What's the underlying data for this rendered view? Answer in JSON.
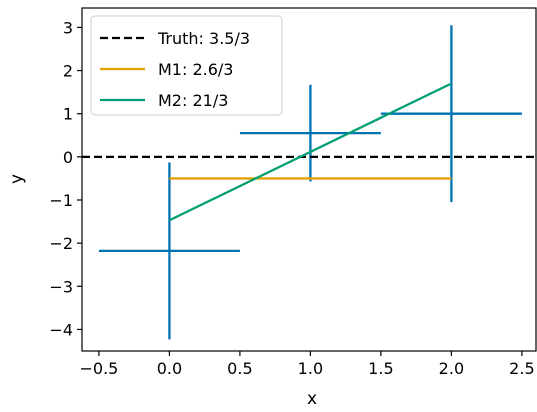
{
  "chart_data": {
    "type": "scatter",
    "title": "",
    "xlabel": "x",
    "ylabel": "y",
    "xlim": [
      -0.62,
      2.6
    ],
    "ylim": [
      -4.5,
      3.45
    ],
    "x_ticks": [
      -0.5,
      0.0,
      0.5,
      1.0,
      1.5,
      2.0,
      2.5
    ],
    "x_tick_labels": [
      "−0.5",
      "0.0",
      "0.5",
      "1.0",
      "1.5",
      "2.0",
      "2.5"
    ],
    "y_ticks": [
      -4,
      -3,
      -2,
      -1,
      0,
      1,
      2,
      3
    ],
    "y_tick_labels": [
      "−4",
      "−3",
      "−2",
      "−1",
      "0",
      "1",
      "2",
      "3"
    ],
    "grid": false,
    "legend_position": "top-left",
    "points": {
      "color": "#0072B2",
      "x": [
        0,
        1,
        2
      ],
      "y": [
        -2.18,
        0.55,
        1.0
      ],
      "xerr": [
        0.5,
        0.5,
        0.5
      ],
      "yerr": [
        2.05,
        1.12,
        2.05
      ]
    },
    "series": [
      {
        "name": "Truth: 3.5/3",
        "kind": "hline",
        "y": 0,
        "color": "#000000",
        "dashed": true
      },
      {
        "name": "M1: 2.6/3",
        "kind": "line",
        "x": [
          0,
          2
        ],
        "y": [
          -0.5,
          -0.5
        ],
        "color": "#E69F00",
        "dashed": false
      },
      {
        "name": "M2: 21/3",
        "kind": "line",
        "x": [
          0,
          2
        ],
        "y": [
          -1.47,
          1.7
        ],
        "color": "#009E73",
        "dashed": false
      }
    ]
  }
}
